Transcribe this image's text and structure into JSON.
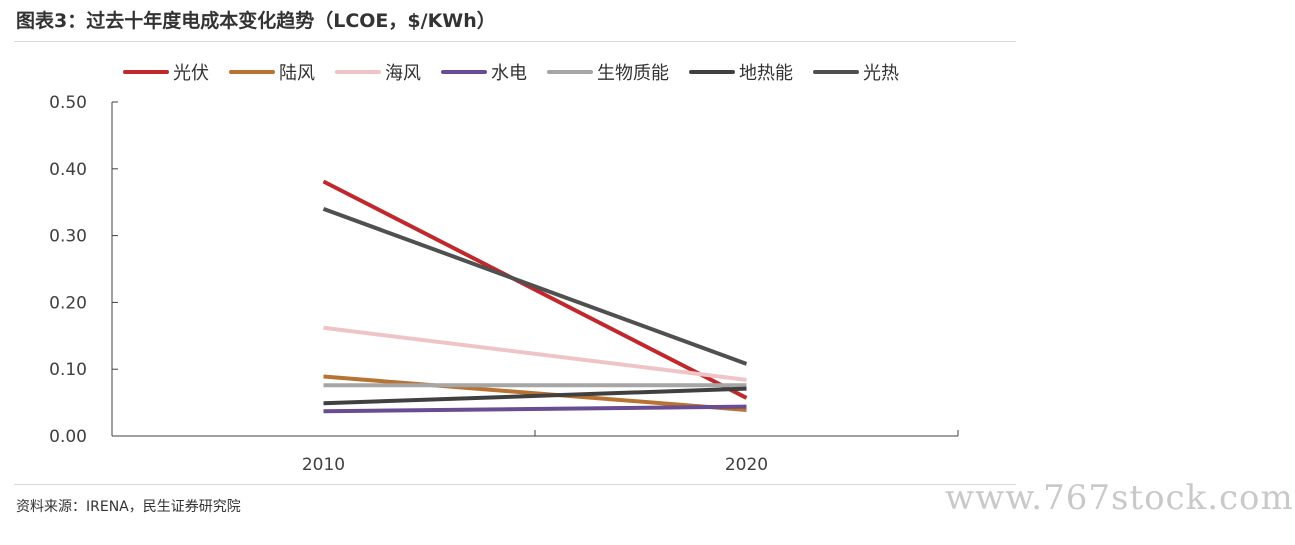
{
  "header": {
    "title": "图表3：过去十年度电成本变化趋势（LCOE，$/KWh）"
  },
  "footer": {
    "source": "资料来源：IRENA，民生证券研究院",
    "watermark": "www.767stock.com"
  },
  "chart_data": {
    "type": "line",
    "title": "",
    "xlabel": "",
    "ylabel": "",
    "categories": [
      "2010",
      "2020"
    ],
    "ylim": [
      0,
      0.5
    ],
    "yticks": [
      0,
      0.1,
      0.2,
      0.3,
      0.4,
      0.5
    ],
    "ytick_labels": [
      "0.00",
      "0.10",
      "0.20",
      "0.30",
      "0.40",
      "0.50"
    ],
    "grid": false,
    "legend_position": "top",
    "series": [
      {
        "name": "光伏",
        "values": [
          0.381,
          0.057
        ],
        "color": "#c0282d"
      },
      {
        "name": "陆风",
        "values": [
          0.089,
          0.039
        ],
        "color": "#b87333"
      },
      {
        "name": "海风",
        "values": [
          0.162,
          0.084
        ],
        "color": "#efc4c6"
      },
      {
        "name": "水电",
        "values": [
          0.037,
          0.044
        ],
        "color": "#6a4c93"
      },
      {
        "name": "生物质能",
        "values": [
          0.076,
          0.076
        ],
        "color": "#a6a6a6"
      },
      {
        "name": "地热能",
        "values": [
          0.049,
          0.071
        ],
        "color": "#404040"
      },
      {
        "name": "光热",
        "values": [
          0.34,
          0.108
        ],
        "color": "#505050"
      }
    ]
  }
}
